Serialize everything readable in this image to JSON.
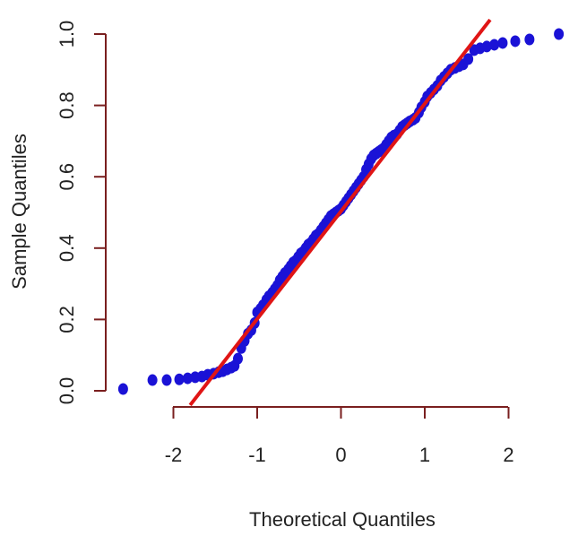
{
  "chart_data": {
    "type": "scatter",
    "title": "",
    "xlabel": "Theoretical Quantiles",
    "ylabel": "Sample Quantiles",
    "xlim": [
      -2.6,
      2.6
    ],
    "ylim": [
      0.0,
      1.0
    ],
    "x_ticks": [
      -2,
      -1,
      0,
      1,
      2
    ],
    "y_ticks": [
      0.0,
      0.2,
      0.4,
      0.6,
      0.8,
      1.0
    ],
    "x_tick_labels": [
      "-2",
      "-1",
      "0",
      "1",
      "2"
    ],
    "y_tick_labels": [
      "0.0",
      "0.2",
      "0.4",
      "0.6",
      "0.8",
      "1.0"
    ],
    "grid": false,
    "legend": "none",
    "colors": {
      "points": "#1a12d6",
      "reference_line": "#e01515",
      "axes": "#7a1f1f"
    },
    "reference_line": {
      "x": [
        -1.8,
        1.78
      ],
      "y": [
        -0.04,
        1.04
      ]
    },
    "series": [
      {
        "x": [
          -2.6,
          -2.25,
          -2.08,
          -1.93,
          -1.83,
          -1.74,
          -1.66,
          -1.59,
          -1.52,
          -1.46,
          -1.41,
          -1.36,
          -1.31,
          -1.27,
          -1.23,
          -1.19,
          -1.15,
          -1.11,
          -1.07,
          -1.03,
          -1.0,
          -0.96,
          -0.93,
          -0.89,
          -0.86,
          -0.82,
          -0.79,
          -0.76,
          -0.73,
          -0.7,
          -0.67,
          -0.63,
          -0.6,
          -0.57,
          -0.54,
          -0.51,
          -0.48,
          -0.45,
          -0.42,
          -0.39,
          -0.36,
          -0.33,
          -0.3,
          -0.27,
          -0.24,
          -0.21,
          -0.18,
          -0.15,
          -0.12,
          -0.09,
          -0.06,
          -0.03,
          0.0,
          0.03,
          0.06,
          0.09,
          0.12,
          0.15,
          0.18,
          0.21,
          0.24,
          0.27,
          0.3,
          0.33,
          0.36,
          0.39,
          0.42,
          0.45,
          0.48,
          0.51,
          0.54,
          0.57,
          0.6,
          0.63,
          0.67,
          0.7,
          0.73,
          0.76,
          0.79,
          0.82,
          0.86,
          0.89,
          0.93,
          0.96,
          1.0,
          1.03,
          1.07,
          1.11,
          1.15,
          1.19,
          1.23,
          1.27,
          1.31,
          1.36,
          1.41,
          1.46,
          1.52,
          1.59,
          1.66,
          1.74,
          1.83,
          1.93,
          2.08,
          2.25,
          2.6
        ],
        "y": [
          0.005,
          0.03,
          0.03,
          0.032,
          0.035,
          0.038,
          0.04,
          0.045,
          0.048,
          0.052,
          0.055,
          0.06,
          0.065,
          0.07,
          0.09,
          0.12,
          0.14,
          0.16,
          0.17,
          0.19,
          0.22,
          0.23,
          0.24,
          0.255,
          0.265,
          0.275,
          0.285,
          0.295,
          0.31,
          0.32,
          0.33,
          0.34,
          0.35,
          0.36,
          0.365,
          0.375,
          0.385,
          0.39,
          0.4,
          0.41,
          0.415,
          0.425,
          0.435,
          0.44,
          0.45,
          0.46,
          0.47,
          0.48,
          0.49,
          0.495,
          0.5,
          0.505,
          0.51,
          0.52,
          0.53,
          0.54,
          0.55,
          0.56,
          0.57,
          0.58,
          0.59,
          0.6,
          0.62,
          0.635,
          0.65,
          0.66,
          0.665,
          0.67,
          0.675,
          0.68,
          0.69,
          0.7,
          0.71,
          0.715,
          0.72,
          0.73,
          0.74,
          0.745,
          0.75,
          0.755,
          0.76,
          0.765,
          0.78,
          0.795,
          0.81,
          0.825,
          0.835,
          0.845,
          0.855,
          0.87,
          0.88,
          0.89,
          0.9,
          0.905,
          0.91,
          0.915,
          0.93,
          0.955,
          0.96,
          0.965,
          0.97,
          0.975,
          0.98,
          0.985,
          1.0
        ]
      }
    ]
  }
}
